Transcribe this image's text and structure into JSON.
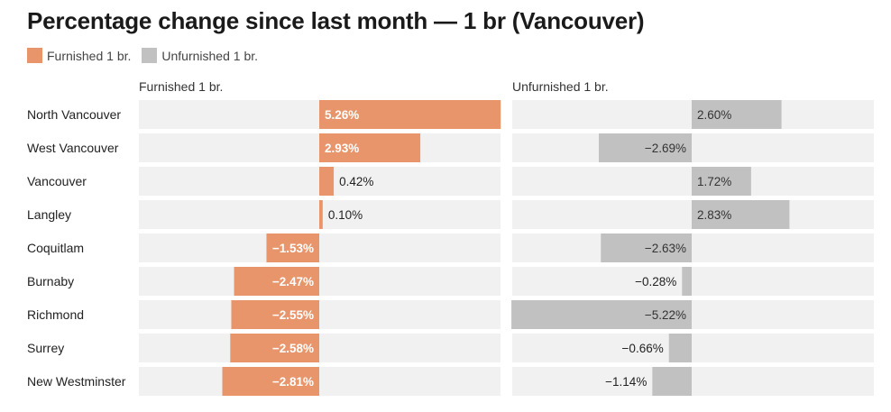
{
  "chart_data": {
    "type": "bar",
    "title": "Percentage change since last month — 1 br (Vancouver)",
    "legend": [
      {
        "label": "Furnished 1 br.",
        "color": "#e8956b"
      },
      {
        "label": "Unfurnished 1 br.",
        "color": "#c1c1c1"
      }
    ],
    "categories": [
      "North Vancouver",
      "West Vancouver",
      "Vancouver",
      "Langley",
      "Coquitlam",
      "Burnaby",
      "Richmond",
      "Surrey",
      "New Westminster"
    ],
    "series": [
      {
        "name": "Furnished 1 br.",
        "color": "#e8956b",
        "values": [
          5.26,
          2.93,
          0.42,
          0.1,
          -1.53,
          -2.47,
          -2.55,
          -2.58,
          -2.81
        ],
        "labels": [
          "5.26%",
          "2.93%",
          "0.42%",
          "0.10%",
          "−1.53%",
          "−2.47%",
          "−2.55%",
          "−2.58%",
          "−2.81%"
        ]
      },
      {
        "name": "Unfurnished 1 br.",
        "color": "#c1c1c1",
        "values": [
          2.6,
          -2.69,
          1.72,
          2.83,
          -2.63,
          -0.28,
          -5.22,
          -0.66,
          -1.14
        ],
        "labels": [
          "2.60%",
          "−2.69%",
          "1.72%",
          "2.83%",
          "−2.63%",
          "−0.28%",
          "−5.22%",
          "−0.66%",
          "−1.14%"
        ]
      }
    ],
    "panel_background": "#f1f1f1"
  }
}
